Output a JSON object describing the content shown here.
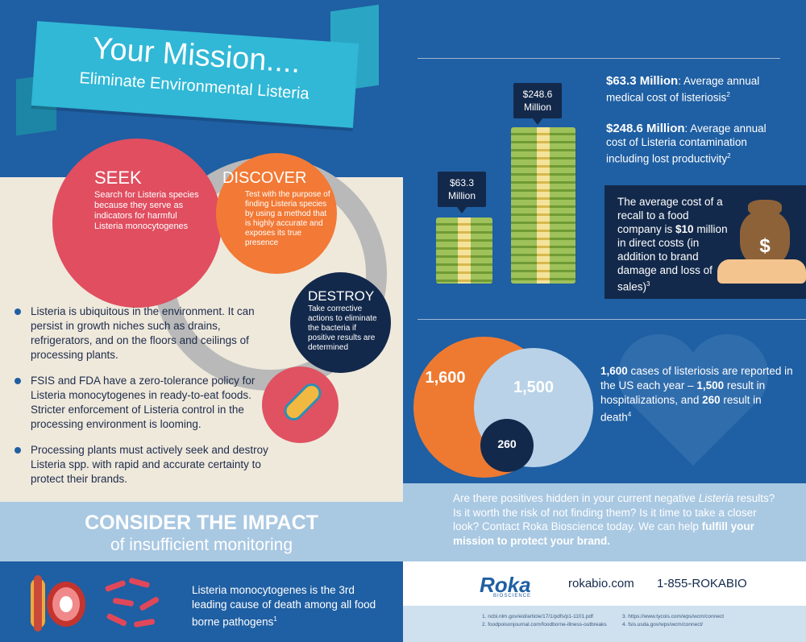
{
  "banner": {
    "title": "Your Mission....",
    "subtitle": "Eliminate Environmental Listeria"
  },
  "cycle": {
    "seek": {
      "title": "SEEK",
      "text": "Search for Listeria species because they serve as indicators for harmful Listeria monocytogenes"
    },
    "discover": {
      "title": "DISCOVER",
      "text": "Test with the purpose of finding Listeria species by using a method that is highly accurate and exposes its true presence"
    },
    "destroy": {
      "title": "DESTROY",
      "text": "Take corrective actions to eliminate the bacteria if positive results are determined"
    }
  },
  "bullets": [
    {
      "text": "Listeria is ubiquitous in the environment. It can persist in growth niches such as drains, refrigerators, and on the floors and ceilings of processing plants."
    },
    {
      "text": "FSIS and FDA have a zero-tolerance policy for Listeria monocytogenes in ready-to-eat foods. Stricter enforcement of Listeria control in the processing environment is looming."
    },
    {
      "text": "Processing plants must actively seek and destroy Listeria spp. with rapid and accurate certainty to protect their brands."
    }
  ],
  "consider": {
    "title": "CONSIDER THE IMPACT",
    "subtitle": "of insufficient monitoring"
  },
  "death_fact": {
    "text": "Listeria monocytogenes is the 3rd leading cause of death among all food borne pathogens",
    "ref": "1"
  },
  "money": {
    "small_label": "$63.3\nMillion",
    "large_label": "$248.6\nMillion",
    "small_value": "$63.3",
    "large_value": "$248.6",
    "unit": "Million",
    "medical": {
      "amount": "$63.3 Million",
      "desc": ": Average annual medical cost of listeriosis",
      "ref": "2"
    },
    "contamination": {
      "amount": "$248.6 Million",
      "desc": ": Average annual cost of Listeria contamination including lost productivity",
      "ref": "2"
    }
  },
  "recall": {
    "text_pre": "The average cost of a recall to a food company is ",
    "amount": "$10",
    "text_post": " million in direct costs (in addition to brand damage and loss of sales)",
    "ref": "3",
    "bag_symbol": "$"
  },
  "venn": {
    "cases": "1,600",
    "hospitalizations": "1,500",
    "deaths": "260"
  },
  "stats": {
    "cases": "1,600",
    "t1": " cases of listeriosis are reported in the US each year – ",
    "hosp": "1,500",
    "t2": " result in hospitalizations, and ",
    "deaths": "260",
    "t3": " result in death",
    "ref": "4"
  },
  "cta": {
    "text1": "Are there positives hidden in your current negative ",
    "italic": "Listeria",
    "text2": " results? Is it worth the risk of not finding them? Is it time to take a closer look? Contact Roka Bioscience today. We can help ",
    "bold": "fulfill your mission to protect your brand."
  },
  "footer": {
    "logo": "Roka",
    "logo_sub": "BIOSCIENCE",
    "url": "rokabio.com",
    "phone": "1-855-ROKABIO"
  },
  "references": [
    "1. ncbi.nlm.gov/eid/article/17/1/pdfs/p1-1101.pdf",
    "2. foodpoisonjournal.com/foodborne-illness-outbreaks",
    "3. https://www.tycois.com/wps/wcm/connect",
    "4. fsis.usda.gov/wps/wcm/connect/"
  ],
  "colors": {
    "navy": "#13294b",
    "blue": "#1f5fa3",
    "light_blue": "#a9c8e2",
    "pink": "#e04e60",
    "orange": "#f27a36",
    "cream": "#efe9dc",
    "teal": "#30b8d6"
  }
}
